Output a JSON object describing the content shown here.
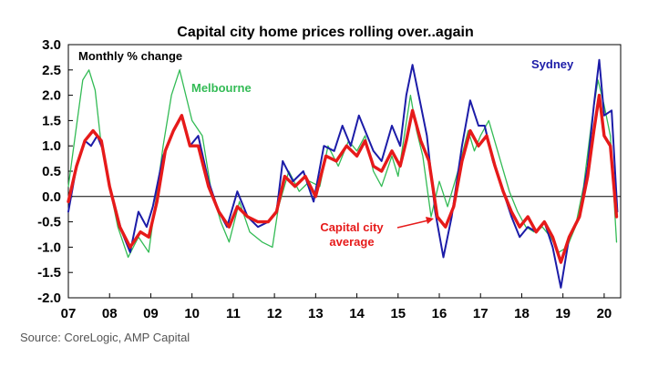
{
  "source": "Source: CoreLogic, AMP Capital",
  "chart_data": {
    "type": "line",
    "title": "Capital city home prices rolling over..again",
    "ylabel_note": "Monthly % change",
    "xlabel": "",
    "ylim": [
      -2.0,
      3.0
    ],
    "xlim": [
      2007.0,
      2020.4
    ],
    "yticks": [
      "3.0",
      "2.5",
      "2.0",
      "1.5",
      "1.0",
      "0.5",
      "0.0",
      "-0.5",
      "-1.0",
      "-1.5",
      "-2.0"
    ],
    "ytick_values": [
      3.0,
      2.5,
      2.0,
      1.5,
      1.0,
      0.5,
      0.0,
      -0.5,
      -1.0,
      -1.5,
      -2.0
    ],
    "xticks": [
      "07",
      "08",
      "09",
      "10",
      "11",
      "12",
      "13",
      "14",
      "15",
      "16",
      "17",
      "18",
      "19",
      "20"
    ],
    "xtick_values": [
      2007,
      2008,
      2009,
      2010,
      2011,
      2012,
      2013,
      2014,
      2015,
      2016,
      2017,
      2018,
      2019,
      2020
    ],
    "annotations": {
      "sydney": "Sydney",
      "melbourne": "Melbourne",
      "capital_line1": "Capital city",
      "capital_line2": "average"
    },
    "colors": {
      "sydney": "#1c1ca8",
      "melbourne": "#33bb55",
      "capital": "#e61a1a"
    },
    "series": [
      {
        "name": "Melbourne",
        "points": [
          [
            2007.0,
            0.2
          ],
          [
            2007.2,
            1.4
          ],
          [
            2007.35,
            2.3
          ],
          [
            2007.5,
            2.5
          ],
          [
            2007.65,
            2.1
          ],
          [
            2007.8,
            1.0
          ],
          [
            2008.0,
            0.2
          ],
          [
            2008.2,
            -0.6
          ],
          [
            2008.45,
            -1.2
          ],
          [
            2008.7,
            -0.8
          ],
          [
            2008.95,
            -1.1
          ],
          [
            2009.1,
            -0.2
          ],
          [
            2009.3,
            1.0
          ],
          [
            2009.5,
            2.0
          ],
          [
            2009.7,
            2.5
          ],
          [
            2009.85,
            2.0
          ],
          [
            2010.0,
            1.5
          ],
          [
            2010.25,
            1.2
          ],
          [
            2010.45,
            0.2
          ],
          [
            2010.7,
            -0.5
          ],
          [
            2010.9,
            -0.9
          ],
          [
            2011.15,
            -0.1
          ],
          [
            2011.4,
            -0.7
          ],
          [
            2011.7,
            -0.9
          ],
          [
            2011.95,
            -1.0
          ],
          [
            2012.1,
            -0.2
          ],
          [
            2012.35,
            0.5
          ],
          [
            2012.6,
            0.1
          ],
          [
            2012.85,
            0.3
          ],
          [
            2013.1,
            0.2
          ],
          [
            2013.3,
            1.0
          ],
          [
            2013.55,
            0.6
          ],
          [
            2013.8,
            1.1
          ],
          [
            2014.0,
            0.9
          ],
          [
            2014.2,
            1.2
          ],
          [
            2014.4,
            0.5
          ],
          [
            2014.6,
            0.2
          ],
          [
            2014.85,
            0.8
          ],
          [
            2015.0,
            0.4
          ],
          [
            2015.15,
            1.2
          ],
          [
            2015.3,
            2.0
          ],
          [
            2015.45,
            1.3
          ],
          [
            2015.6,
            0.8
          ],
          [
            2015.8,
            -0.4
          ],
          [
            2016.0,
            0.3
          ],
          [
            2016.2,
            -0.2
          ],
          [
            2016.45,
            0.5
          ],
          [
            2016.7,
            1.3
          ],
          [
            2016.85,
            0.9
          ],
          [
            2017.0,
            1.2
          ],
          [
            2017.2,
            1.5
          ],
          [
            2017.45,
            0.8
          ],
          [
            2017.7,
            0.1
          ],
          [
            2017.9,
            -0.3
          ],
          [
            2018.1,
            -0.6
          ],
          [
            2018.3,
            -0.7
          ],
          [
            2018.5,
            -0.6
          ],
          [
            2018.7,
            -0.8
          ],
          [
            2018.9,
            -1.1
          ],
          [
            2019.1,
            -1.0
          ],
          [
            2019.3,
            -0.6
          ],
          [
            2019.5,
            0.2
          ],
          [
            2019.7,
            1.5
          ],
          [
            2019.85,
            2.3
          ],
          [
            2020.0,
            1.8
          ],
          [
            2020.15,
            1.2
          ],
          [
            2020.3,
            -0.9
          ]
        ]
      },
      {
        "name": "Sydney",
        "points": [
          [
            2007.0,
            -0.3
          ],
          [
            2007.2,
            0.6
          ],
          [
            2007.4,
            1.1
          ],
          [
            2007.55,
            1.0
          ],
          [
            2007.7,
            1.2
          ],
          [
            2007.85,
            0.9
          ],
          [
            2008.05,
            0.0
          ],
          [
            2008.3,
            -0.7
          ],
          [
            2008.5,
            -1.1
          ],
          [
            2008.7,
            -0.3
          ],
          [
            2008.9,
            -0.6
          ],
          [
            2009.05,
            -0.2
          ],
          [
            2009.3,
            0.8
          ],
          [
            2009.55,
            1.3
          ],
          [
            2009.75,
            1.6
          ],
          [
            2009.95,
            1.0
          ],
          [
            2010.15,
            1.2
          ],
          [
            2010.4,
            0.3
          ],
          [
            2010.65,
            -0.3
          ],
          [
            2010.85,
            -0.6
          ],
          [
            2011.1,
            0.1
          ],
          [
            2011.35,
            -0.4
          ],
          [
            2011.6,
            -0.6
          ],
          [
            2011.85,
            -0.5
          ],
          [
            2012.05,
            -0.3
          ],
          [
            2012.2,
            0.7
          ],
          [
            2012.45,
            0.3
          ],
          [
            2012.7,
            0.5
          ],
          [
            2012.95,
            -0.1
          ],
          [
            2013.2,
            1.0
          ],
          [
            2013.45,
            0.9
          ],
          [
            2013.65,
            1.4
          ],
          [
            2013.85,
            1.0
          ],
          [
            2014.05,
            1.6
          ],
          [
            2014.2,
            1.3
          ],
          [
            2014.4,
            0.9
          ],
          [
            2014.6,
            0.7
          ],
          [
            2014.85,
            1.4
          ],
          [
            2015.05,
            1.0
          ],
          [
            2015.2,
            2.0
          ],
          [
            2015.35,
            2.6
          ],
          [
            2015.55,
            1.8
          ],
          [
            2015.7,
            1.2
          ],
          [
            2015.9,
            -0.3
          ],
          [
            2016.1,
            -1.2
          ],
          [
            2016.3,
            -0.4
          ],
          [
            2016.55,
            1.0
          ],
          [
            2016.75,
            1.9
          ],
          [
            2016.95,
            1.4
          ],
          [
            2017.1,
            1.4
          ],
          [
            2017.3,
            0.7
          ],
          [
            2017.55,
            0.1
          ],
          [
            2017.75,
            -0.4
          ],
          [
            2017.95,
            -0.8
          ],
          [
            2018.15,
            -0.6
          ],
          [
            2018.35,
            -0.7
          ],
          [
            2018.55,
            -0.5
          ],
          [
            2018.75,
            -1.0
          ],
          [
            2018.95,
            -1.8
          ],
          [
            2019.15,
            -0.8
          ],
          [
            2019.4,
            -0.4
          ],
          [
            2019.6,
            0.6
          ],
          [
            2019.75,
            1.8
          ],
          [
            2019.88,
            2.7
          ],
          [
            2020.0,
            1.6
          ],
          [
            2020.18,
            1.7
          ],
          [
            2020.32,
            -0.3
          ]
        ]
      },
      {
        "name": "Capital city average",
        "points": [
          [
            2007.0,
            -0.1
          ],
          [
            2007.2,
            0.6
          ],
          [
            2007.4,
            1.1
          ],
          [
            2007.6,
            1.3
          ],
          [
            2007.8,
            1.1
          ],
          [
            2008.0,
            0.2
          ],
          [
            2008.25,
            -0.6
          ],
          [
            2008.5,
            -1.0
          ],
          [
            2008.75,
            -0.7
          ],
          [
            2008.95,
            -0.8
          ],
          [
            2009.15,
            -0.1
          ],
          [
            2009.35,
            0.9
          ],
          [
            2009.55,
            1.3
          ],
          [
            2009.75,
            1.6
          ],
          [
            2009.95,
            1.0
          ],
          [
            2010.15,
            1.0
          ],
          [
            2010.4,
            0.2
          ],
          [
            2010.65,
            -0.3
          ],
          [
            2010.9,
            -0.6
          ],
          [
            2011.1,
            -0.2
          ],
          [
            2011.35,
            -0.4
          ],
          [
            2011.6,
            -0.5
          ],
          [
            2011.85,
            -0.5
          ],
          [
            2012.05,
            -0.3
          ],
          [
            2012.25,
            0.4
          ],
          [
            2012.5,
            0.2
          ],
          [
            2012.75,
            0.4
          ],
          [
            2013.0,
            0.0
          ],
          [
            2013.25,
            0.8
          ],
          [
            2013.5,
            0.7
          ],
          [
            2013.75,
            1.0
          ],
          [
            2014.0,
            0.8
          ],
          [
            2014.2,
            1.1
          ],
          [
            2014.4,
            0.6
          ],
          [
            2014.6,
            0.5
          ],
          [
            2014.85,
            0.9
          ],
          [
            2015.05,
            0.6
          ],
          [
            2015.2,
            1.1
          ],
          [
            2015.35,
            1.7
          ],
          [
            2015.55,
            1.1
          ],
          [
            2015.75,
            0.7
          ],
          [
            2015.95,
            -0.4
          ],
          [
            2016.15,
            -0.6
          ],
          [
            2016.35,
            -0.2
          ],
          [
            2016.55,
            0.7
          ],
          [
            2016.75,
            1.3
          ],
          [
            2016.95,
            1.0
          ],
          [
            2017.15,
            1.2
          ],
          [
            2017.35,
            0.6
          ],
          [
            2017.55,
            0.1
          ],
          [
            2017.75,
            -0.3
          ],
          [
            2017.95,
            -0.6
          ],
          [
            2018.15,
            -0.4
          ],
          [
            2018.35,
            -0.7
          ],
          [
            2018.55,
            -0.5
          ],
          [
            2018.75,
            -0.8
          ],
          [
            2018.95,
            -1.3
          ],
          [
            2019.15,
            -0.8
          ],
          [
            2019.4,
            -0.4
          ],
          [
            2019.6,
            0.4
          ],
          [
            2019.75,
            1.3
          ],
          [
            2019.88,
            2.0
          ],
          [
            2020.0,
            1.2
          ],
          [
            2020.15,
            1.0
          ],
          [
            2020.3,
            -0.4
          ]
        ]
      }
    ]
  }
}
